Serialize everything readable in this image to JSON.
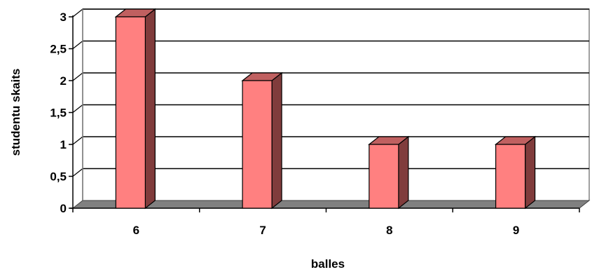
{
  "chart_data": {
    "type": "bar",
    "categories": [
      "6",
      "7",
      "8",
      "9"
    ],
    "values": [
      3,
      2,
      1,
      1
    ],
    "title": "",
    "xlabel": "balles",
    "ylabel": "studentu skaits",
    "ylim": [
      0,
      3
    ],
    "yticks": [
      "0",
      "0,5",
      "1",
      "1,5",
      "2",
      "2,5",
      "3"
    ],
    "grid": true,
    "legend": "none",
    "colors": {
      "bar_front": "#ff8080",
      "bar_top": "#c06060",
      "bar_side": "#803c3c",
      "floor": "#808080",
      "grid": "#000000"
    }
  }
}
